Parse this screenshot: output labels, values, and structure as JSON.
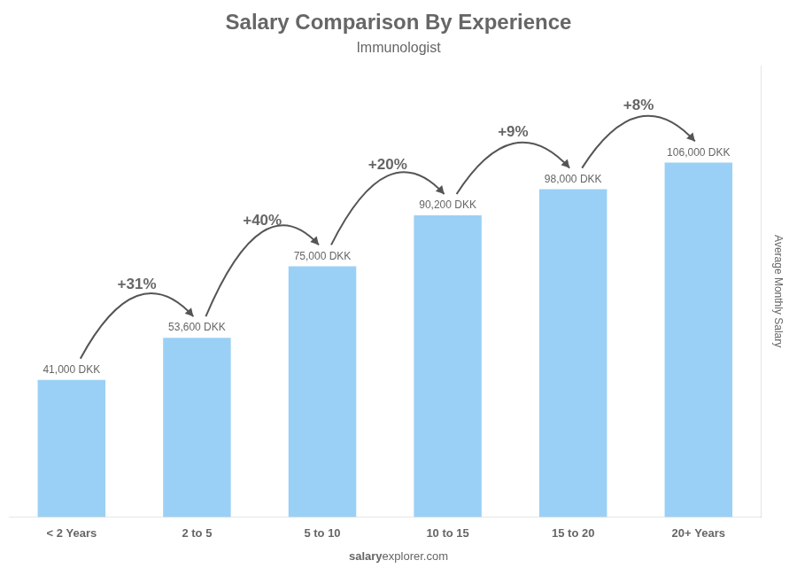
{
  "chart_data": {
    "type": "bar",
    "title": "Salary Comparison By Experience",
    "subtitle": "Immunologist",
    "categories": [
      "< 2 Years",
      "2 to 5",
      "5 to 10",
      "10 to 15",
      "15 to 20",
      "20+ Years"
    ],
    "values": [
      41000,
      53600,
      75000,
      90200,
      98000,
      106000
    ],
    "value_labels": [
      "41,000 DKK",
      "53,600 DKK",
      "75,000 DKK",
      "90,200 DKK",
      "98,000 DKK",
      "106,000 DKK"
    ],
    "data_labels": true,
    "annotations": [
      "+31%",
      "+40%",
      "+20%",
      "+9%",
      "+8%"
    ],
    "ylabel": "Average Monthly Salary",
    "watermark": [
      "salary",
      "explorer.com"
    ],
    "ylim": [
      0,
      135000
    ],
    "grid": false,
    "tick_labels": "x"
  }
}
